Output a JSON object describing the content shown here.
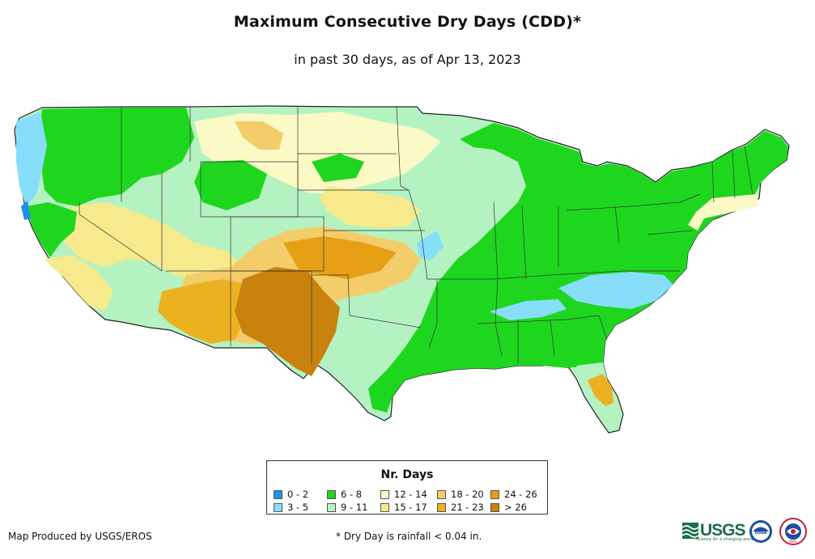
{
  "title": "Maximum Consecutive Dry Days (CDD)*",
  "subtitle": "in past 30 days, as of Apr 13, 2023",
  "legend": {
    "title": "Nr. Days",
    "items": [
      {
        "label": "0 - 2",
        "color": "#1e90e8"
      },
      {
        "label": "3 - 5",
        "color": "#87defa"
      },
      {
        "label": "6 - 8",
        "color": "#1fd61f"
      },
      {
        "label": "9 - 11",
        "color": "#b5f2c2"
      },
      {
        "label": "12 - 14",
        "color": "#fbf9c6"
      },
      {
        "label": "15 - 17",
        "color": "#f7ea8c"
      },
      {
        "label": "18 - 20",
        "color": "#f3cd6a"
      },
      {
        "label": "21 - 23",
        "color": "#ecb120"
      },
      {
        "label": "24 - 26",
        "color": "#e79f16"
      },
      {
        "label": "> 26",
        "color": "#c8820d"
      }
    ]
  },
  "footer": {
    "credit": "Map Produced by USGS/EROS",
    "note": "* Dry Day is rainfall < 0.04 in."
  },
  "logos": {
    "usgs": "USGS",
    "usgs_tagline": "science for a changing world",
    "noaa": "noaa",
    "nws": "NWS"
  }
}
